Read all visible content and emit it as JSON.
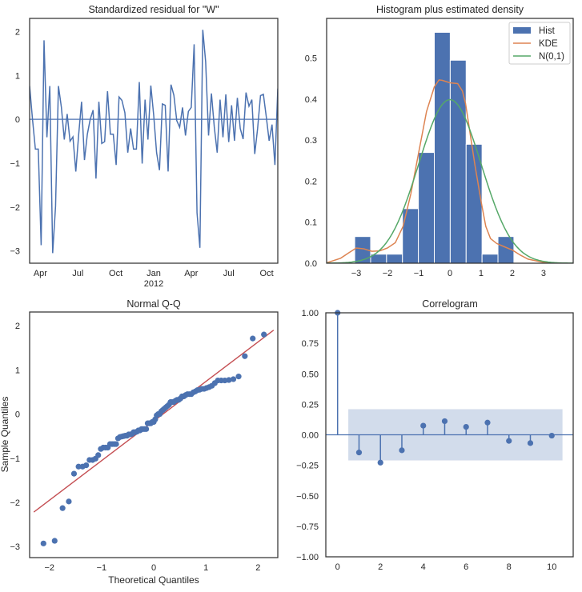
{
  "colors": {
    "blue": "#4c72b0",
    "orange": "#dd8452",
    "green": "#55a868",
    "red": "#c44e52",
    "band": "#4c72b0"
  },
  "chart_data": [
    {
      "type": "line",
      "title": "Standardized residual for \"W\"",
      "x": [
        "2011-03-06",
        "2011-03-13",
        "2011-03-20",
        "2011-03-27",
        "2011-04-03",
        "2011-04-10",
        "2011-04-17",
        "2011-04-24",
        "2011-05-01",
        "2011-05-08",
        "2011-05-15",
        "2011-05-22",
        "2011-05-29",
        "2011-06-05",
        "2011-06-12",
        "2011-06-19",
        "2011-06-26",
        "2011-07-03",
        "2011-07-10",
        "2011-07-17",
        "2011-07-24",
        "2011-07-31",
        "2011-08-07",
        "2011-08-14",
        "2011-08-21",
        "2011-08-28",
        "2011-09-04",
        "2011-09-11",
        "2011-09-18",
        "2011-09-25",
        "2011-10-02",
        "2011-10-09",
        "2011-10-16",
        "2011-10-23",
        "2011-10-30",
        "2011-11-06",
        "2011-11-13",
        "2011-11-20",
        "2011-11-27",
        "2011-12-04",
        "2011-12-11",
        "2011-12-18",
        "2011-12-25",
        "2012-01-01",
        "2012-01-08",
        "2012-01-15",
        "2012-01-22",
        "2012-01-29",
        "2012-02-05",
        "2012-02-12",
        "2012-02-19",
        "2012-02-26",
        "2012-03-04",
        "2012-03-11",
        "2012-03-18",
        "2012-03-25",
        "2012-04-01",
        "2012-04-08",
        "2012-04-15",
        "2012-04-22",
        "2012-04-29",
        "2012-05-06",
        "2012-05-13",
        "2012-05-20",
        "2012-05-27",
        "2012-06-03",
        "2012-06-10",
        "2012-06-17",
        "2012-06-24",
        "2012-07-01",
        "2012-07-08",
        "2012-07-15",
        "2012-07-22",
        "2012-07-29",
        "2012-08-05",
        "2012-08-12",
        "2012-08-19",
        "2012-08-26",
        "2012-09-02",
        "2012-09-09",
        "2012-09-16",
        "2012-09-23",
        "2012-09-30",
        "2012-10-07",
        "2012-10-14",
        "2012-10-21",
        "2012-10-28"
      ],
      "values": [
        0.76,
        0,
        -0.68,
        -0.68,
        -2.87,
        1.8,
        -0.41,
        0.76,
        -3.05,
        -1.98,
        0.76,
        0.27,
        -0.46,
        0.12,
        -0.5,
        -0.4,
        -1.19,
        -0.34,
        0.4,
        -0.93,
        -0.34,
        0,
        0.21,
        -1.35,
        0.4,
        -0.55,
        -0.51,
        0.64,
        -0.34,
        -0.34,
        -1.04,
        0.51,
        0.43,
        0.15,
        -0.76,
        -0.21,
        -0.68,
        -0.68,
        0.85,
        -1.01,
        0.45,
        -0.46,
        0.77,
        0.09,
        -0.76,
        -1.16,
        0.35,
        0.32,
        -1.19,
        0.79,
        0.55,
        -0.03,
        -0.18,
        0.27,
        -0.37,
        0.18,
        0.27,
        1.71,
        -2.13,
        -2.93,
        2.04,
        1.31,
        -0.37,
        0.59,
        -0.18,
        -0.76,
        0.45,
        -0.41,
        0.57,
        -0.52,
        0.32,
        -0.49,
        0.49,
        -0.21,
        -0.45,
        0.61,
        0.3,
        0.45,
        -0.79,
        -0.21,
        0.54,
        0.57,
        0.06,
        -0.49,
        -0.12,
        -1.04,
        0.7
      ],
      "hline": 0,
      "ylim": [
        -3.28,
        2.3
      ],
      "yticks": [
        2,
        1,
        0,
        -1,
        -2,
        -3
      ],
      "xticks": [
        {
          "date": "2011-04-01",
          "label": "Apr",
          "sub": ""
        },
        {
          "date": "2011-07-01",
          "label": "Jul",
          "sub": ""
        },
        {
          "date": "2011-10-01",
          "label": "Oct",
          "sub": ""
        },
        {
          "date": "2012-01-01",
          "label": "Jan",
          "sub": "2012"
        },
        {
          "date": "2012-04-01",
          "label": "Apr",
          "sub": ""
        },
        {
          "date": "2012-07-01",
          "label": "Jul",
          "sub": ""
        },
        {
          "date": "2012-10-01",
          "label": "Oct",
          "sub": ""
        }
      ],
      "grid": false
    },
    {
      "type": "bar",
      "title": "Histogram plus estimated density",
      "bins": [
        [
          -3.05,
          -2.54
        ],
        [
          -2.54,
          -2.03
        ],
        [
          -2.03,
          -1.52
        ],
        [
          -1.52,
          -1.01
        ],
        [
          -1.01,
          -0.5
        ],
        [
          -0.5,
          0.01
        ],
        [
          0.01,
          0.52
        ],
        [
          0.52,
          1.03
        ],
        [
          1.03,
          1.54
        ],
        [
          1.54,
          2.05
        ]
      ],
      "hist": [
        0.065,
        0.022,
        0.022,
        0.133,
        0.27,
        0.563,
        0.495,
        0.29,
        0.022,
        0.065
      ],
      "kde": {
        "x": [
          -3.95,
          -3.5,
          -3.25,
          -3,
          -2.75,
          -2.5,
          -2.25,
          -2,
          -1.75,
          -1.5,
          -1.25,
          -1,
          -0.75,
          -0.5,
          -0.35,
          -0.25,
          0,
          0.25,
          0.4,
          0.5,
          0.6,
          0.8,
          1,
          1.15,
          1.3,
          1.5,
          1.75,
          2,
          2.25,
          2.5,
          3,
          3.5
        ],
        "y": [
          0.001,
          0.012,
          0.025,
          0.037,
          0.035,
          0.029,
          0.03,
          0.037,
          0.05,
          0.09,
          0.17,
          0.27,
          0.37,
          0.43,
          0.447,
          0.446,
          0.44,
          0.438,
          0.42,
          0.39,
          0.34,
          0.24,
          0.15,
          0.09,
          0.06,
          0.048,
          0.04,
          0.032,
          0.02,
          0.01,
          0.002,
          0
        ]
      },
      "normal": {
        "mean": 0,
        "sd": 1
      },
      "legend": {
        "position": "top-right",
        "items": [
          "Hist",
          "KDE",
          "N(0,1)"
        ]
      },
      "xlim": [
        -3.95,
        3.95
      ],
      "ylim": [
        0,
        0.597
      ],
      "xticks": [
        -3,
        -2,
        -1,
        0,
        1,
        2,
        3
      ],
      "yticks": [
        0.0,
        0.1,
        0.2,
        0.3,
        0.4,
        0.5
      ],
      "ytick_labels": [
        "0.0",
        "0.1",
        "0.2",
        "0.3",
        "0.4",
        "0.5"
      ]
    },
    {
      "type": "scatter",
      "title": "Normal Q-Q",
      "xlabel": "Theoretical Quantiles",
      "ylabel": "Sample Quantiles",
      "line": {
        "x": [
          -2.3,
          2.3
        ],
        "y": [
          -2.22,
          1.9
        ]
      },
      "xlim": [
        -2.38,
        2.38
      ],
      "ylim": [
        -3.25,
        2.31
      ],
      "xticks": [
        -2,
        -1,
        0,
        1,
        2
      ],
      "yticks": [
        2,
        1,
        0,
        -1,
        -2,
        -3
      ]
    },
    {
      "type": "stem",
      "title": "Correlogram",
      "lags": [
        0,
        1,
        2,
        3,
        4,
        5,
        6,
        7,
        8,
        9,
        10
      ],
      "values": [
        1.0,
        -0.145,
        -0.228,
        -0.127,
        0.075,
        0.112,
        0.065,
        0.1,
        -0.05,
        -0.068,
        -0.007
      ],
      "confidence_band": {
        "x": [
          0.5,
          10.5
        ],
        "y": [
          -0.21,
          0.21
        ]
      },
      "xlim": [
        -0.55,
        11.0
      ],
      "ylim": [
        -1.0,
        1.0
      ],
      "xticks": [
        0,
        2,
        4,
        6,
        8,
        10
      ],
      "yticks": [
        1.0,
        0.75,
        0.5,
        0.25,
        0.0,
        -0.25,
        -0.5,
        -0.75,
        -1.0
      ],
      "ytick_labels": [
        "1.00",
        "0.75",
        "0.50",
        "0.25",
        "0.00",
        "−0.25",
        "−0.50",
        "−0.75",
        "−1.00"
      ]
    }
  ]
}
